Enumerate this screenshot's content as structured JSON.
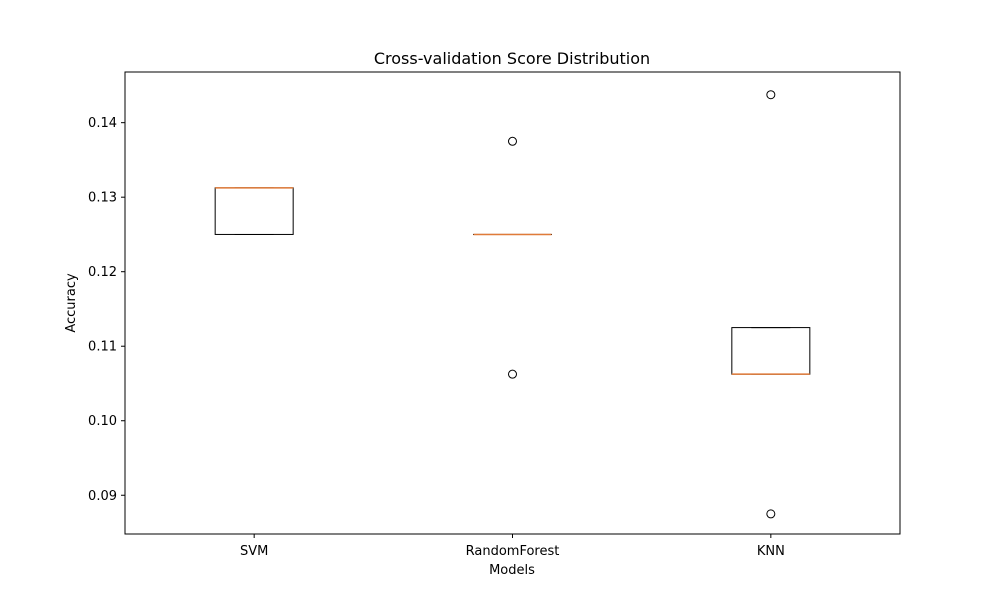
{
  "chart_data": {
    "type": "box",
    "title": "Cross-validation Score Distribution",
    "xlabel": "Models",
    "ylabel": "Accuracy",
    "ylim": [
      0.0848,
      0.1468
    ],
    "yticks": [
      "0.09",
      "0.10",
      "0.11",
      "0.12",
      "0.13",
      "0.14"
    ],
    "ytick_values": [
      0.09,
      0.1,
      0.11,
      0.12,
      0.13,
      0.14
    ],
    "categories": [
      "SVM",
      "RandomForest",
      "KNN"
    ],
    "boxes": [
      {
        "name": "SVM",
        "whislo": 0.125,
        "q1": 0.125,
        "med": 0.13125,
        "q3": 0.13125,
        "whishi": 0.13125,
        "fliers": []
      },
      {
        "name": "RandomForest",
        "whislo": 0.125,
        "q1": 0.125,
        "med": 0.125,
        "q3": 0.125,
        "whishi": 0.125,
        "fliers": [
          0.1375,
          0.10625
        ]
      },
      {
        "name": "KNN",
        "whislo": 0.10625,
        "q1": 0.10625,
        "med": 0.10625,
        "q3": 0.1125,
        "whishi": 0.1125,
        "fliers": [
          0.14375,
          0.0875
        ]
      }
    ],
    "colors": {
      "box": "#000000",
      "median": "#e07b39",
      "flier": "#000000"
    },
    "grid": false,
    "legend": "none"
  }
}
